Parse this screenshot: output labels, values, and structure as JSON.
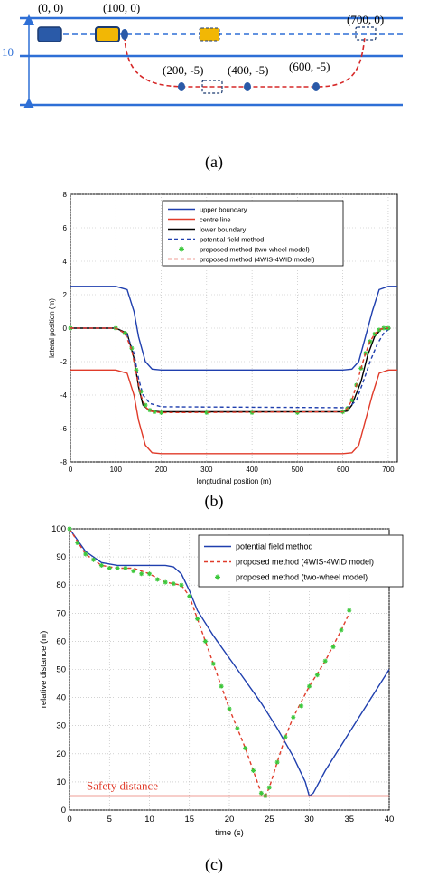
{
  "panel_a": {
    "points": [
      {
        "text": "(0, 0)"
      },
      {
        "text": "(100, 0)"
      },
      {
        "text": "(700, 0)"
      },
      {
        "text": "(200, -5)"
      },
      {
        "text": "(400, -5)"
      },
      {
        "text": "(600, -5)"
      }
    ],
    "width_label": "10",
    "caption": "(a)",
    "colors": {
      "road_line": "#2e6fd6",
      "path": "#d62828",
      "vehicle_blue": "#2a5aa8",
      "vehicle_yellow": "#f2b705"
    }
  },
  "chart_data": [
    {
      "type": "line",
      "caption": "(b)",
      "xlabel": "longtudinal position (m)",
      "ylabel": "lateral position (m)",
      "xlim": [
        0,
        720
      ],
      "ylim": [
        -8,
        8
      ],
      "xticks": [
        "0",
        "100",
        "200",
        "300",
        "400",
        "500",
        "600",
        "700"
      ],
      "yticks": [
        "8",
        "6",
        "4",
        "2",
        "0",
        "-2",
        "-4",
        "-6",
        "-8"
      ],
      "grid": true,
      "legend_position": "top-center",
      "series": [
        {
          "name": "upper boundary",
          "color": "#1f3fae",
          "style": "solid",
          "x": [
            0,
            100,
            125,
            140,
            150,
            165,
            180,
            200,
            600,
            620,
            635,
            650,
            665,
            680,
            700,
            720
          ],
          "y": [
            2.5,
            2.5,
            2.3,
            1.0,
            -0.5,
            -2.0,
            -2.45,
            -2.5,
            -2.5,
            -2.45,
            -2.0,
            -0.5,
            1.0,
            2.3,
            2.5,
            2.5
          ]
        },
        {
          "name": "centre line",
          "color": "#e03b2a",
          "style": "solid",
          "x": [
            0,
            100,
            125,
            140,
            150,
            165,
            180,
            200,
            600,
            620,
            635,
            650,
            665,
            680,
            700,
            720
          ],
          "y": [
            -2.5,
            -2.5,
            -2.7,
            -4.0,
            -5.5,
            -7.0,
            -7.45,
            -7.5,
            -7.5,
            -7.45,
            -7.0,
            -5.5,
            -4.0,
            -2.7,
            -2.5,
            -2.5
          ]
        },
        {
          "name": "lower boundary",
          "color": "#000000",
          "style": "solid",
          "x": [
            0,
            100,
            125,
            140,
            150,
            160,
            175,
            200,
            600,
            610,
            620,
            640,
            655,
            670,
            685,
            705
          ],
          "y": [
            0,
            0,
            -0.3,
            -1.8,
            -3.5,
            -4.6,
            -4.95,
            -5.0,
            -5.0,
            -4.95,
            -4.6,
            -3.2,
            -1.6,
            -0.5,
            -0.05,
            0
          ]
        },
        {
          "name": "potential field method",
          "color": "#1f3fae",
          "style": "dashed",
          "x": [
            0,
            100,
            125,
            140,
            150,
            160,
            175,
            200,
            600,
            615,
            630,
            645,
            660,
            675,
            690,
            705
          ],
          "y": [
            0,
            0,
            -0.4,
            -1.5,
            -3.0,
            -4.0,
            -4.5,
            -4.7,
            -4.75,
            -4.7,
            -4.3,
            -3.2,
            -2.0,
            -1.0,
            -0.3,
            0
          ]
        },
        {
          "name": "proposed method (two-wheel model)",
          "color": "#3cc83c",
          "style": "markers",
          "x": [
            0,
            100,
            120,
            135,
            145,
            155,
            165,
            175,
            185,
            200,
            300,
            400,
            500,
            600,
            610,
            620,
            630,
            640,
            650,
            660,
            670,
            680,
            690,
            700
          ],
          "y": [
            0,
            0,
            -0.3,
            -1.2,
            -2.5,
            -3.8,
            -4.6,
            -4.9,
            -5.0,
            -5.05,
            -5.05,
            -5.05,
            -5.05,
            -5.0,
            -4.8,
            -4.3,
            -3.4,
            -2.4,
            -1.5,
            -0.8,
            -0.35,
            -0.1,
            0,
            0
          ]
        },
        {
          "name": "proposed method (4WIS-4WID model)",
          "color": "#e03b2a",
          "style": "dashed",
          "x": [
            0,
            100,
            120,
            135,
            145,
            155,
            165,
            175,
            185,
            200,
            600,
            610,
            620,
            630,
            640,
            650,
            660,
            670,
            680,
            690,
            700
          ],
          "y": [
            0,
            0,
            -0.3,
            -1.3,
            -2.7,
            -4.0,
            -4.7,
            -4.95,
            -5.0,
            -5.05,
            -5.0,
            -4.8,
            -4.3,
            -3.4,
            -2.4,
            -1.5,
            -0.8,
            -0.35,
            -0.1,
            0,
            0
          ]
        }
      ]
    },
    {
      "type": "line",
      "caption": "(c)",
      "xlabel": "time (s)",
      "ylabel": "relative distance (m)",
      "xlim": [
        0,
        40
      ],
      "ylim": [
        0,
        100
      ],
      "xticks": [
        "0",
        "5",
        "10",
        "15",
        "20",
        "25",
        "30",
        "35",
        "40"
      ],
      "yticks": [
        "100",
        "90",
        "80",
        "70",
        "60",
        "50",
        "40",
        "30",
        "20",
        "10",
        "0"
      ],
      "grid": true,
      "legend_position": "top-right",
      "annotation": "Safety distance",
      "safety_distance": 5,
      "series": [
        {
          "name": "potential field method",
          "color": "#1f3fae",
          "style": "solid",
          "x": [
            0,
            2,
            4,
            6,
            8,
            10,
            12,
            13,
            14,
            15,
            16,
            18,
            20,
            22,
            24,
            26,
            28,
            29.5,
            30,
            30.5,
            32,
            34,
            36,
            38,
            40
          ],
          "y": [
            100,
            92,
            88,
            87,
            87,
            87,
            87,
            86.5,
            84,
            78,
            71,
            62,
            54,
            46,
            38,
            29,
            19,
            10,
            5,
            6,
            14,
            23,
            32,
            41,
            50
          ]
        },
        {
          "name": "proposed method (4WIS-4WID model)",
          "color": "#e03b2a",
          "style": "dashed",
          "x": [
            0,
            2,
            4,
            6,
            8,
            10,
            12,
            13,
            14,
            15,
            16,
            18,
            20,
            22,
            23,
            24,
            24.5,
            25,
            26,
            27,
            28,
            30,
            32,
            34,
            35
          ],
          "y": [
            100,
            91,
            87,
            86,
            86,
            84,
            81,
            80.5,
            80,
            76,
            68,
            52,
            36,
            22,
            14,
            6,
            5,
            8,
            17,
            26,
            33,
            44,
            53,
            64,
            70
          ]
        },
        {
          "name": "proposed method (two-wheel model)",
          "color": "#3cc83c",
          "style": "markers",
          "x": [
            0,
            1,
            2,
            3,
            4,
            5,
            6,
            7,
            8,
            9,
            10,
            11,
            12,
            13,
            14,
            15,
            16,
            17,
            18,
            19,
            20,
            21,
            22,
            23,
            24,
            24.5,
            25,
            26,
            27,
            28,
            29,
            30,
            31,
            32,
            33,
            34,
            35
          ],
          "y": [
            100,
            95,
            91,
            89,
            87,
            86,
            86,
            86,
            85,
            84,
            84,
            82,
            81,
            80.5,
            80,
            76,
            68,
            60,
            52,
            44,
            36,
            29,
            22,
            14,
            6,
            5,
            8,
            17,
            26,
            33,
            37,
            44,
            48,
            53,
            58,
            64,
            71
          ]
        },
        {
          "name": "",
          "color": "#e03b2a",
          "style": "solid",
          "x": [
            0,
            40
          ],
          "y": [
            5,
            5
          ]
        }
      ]
    }
  ]
}
